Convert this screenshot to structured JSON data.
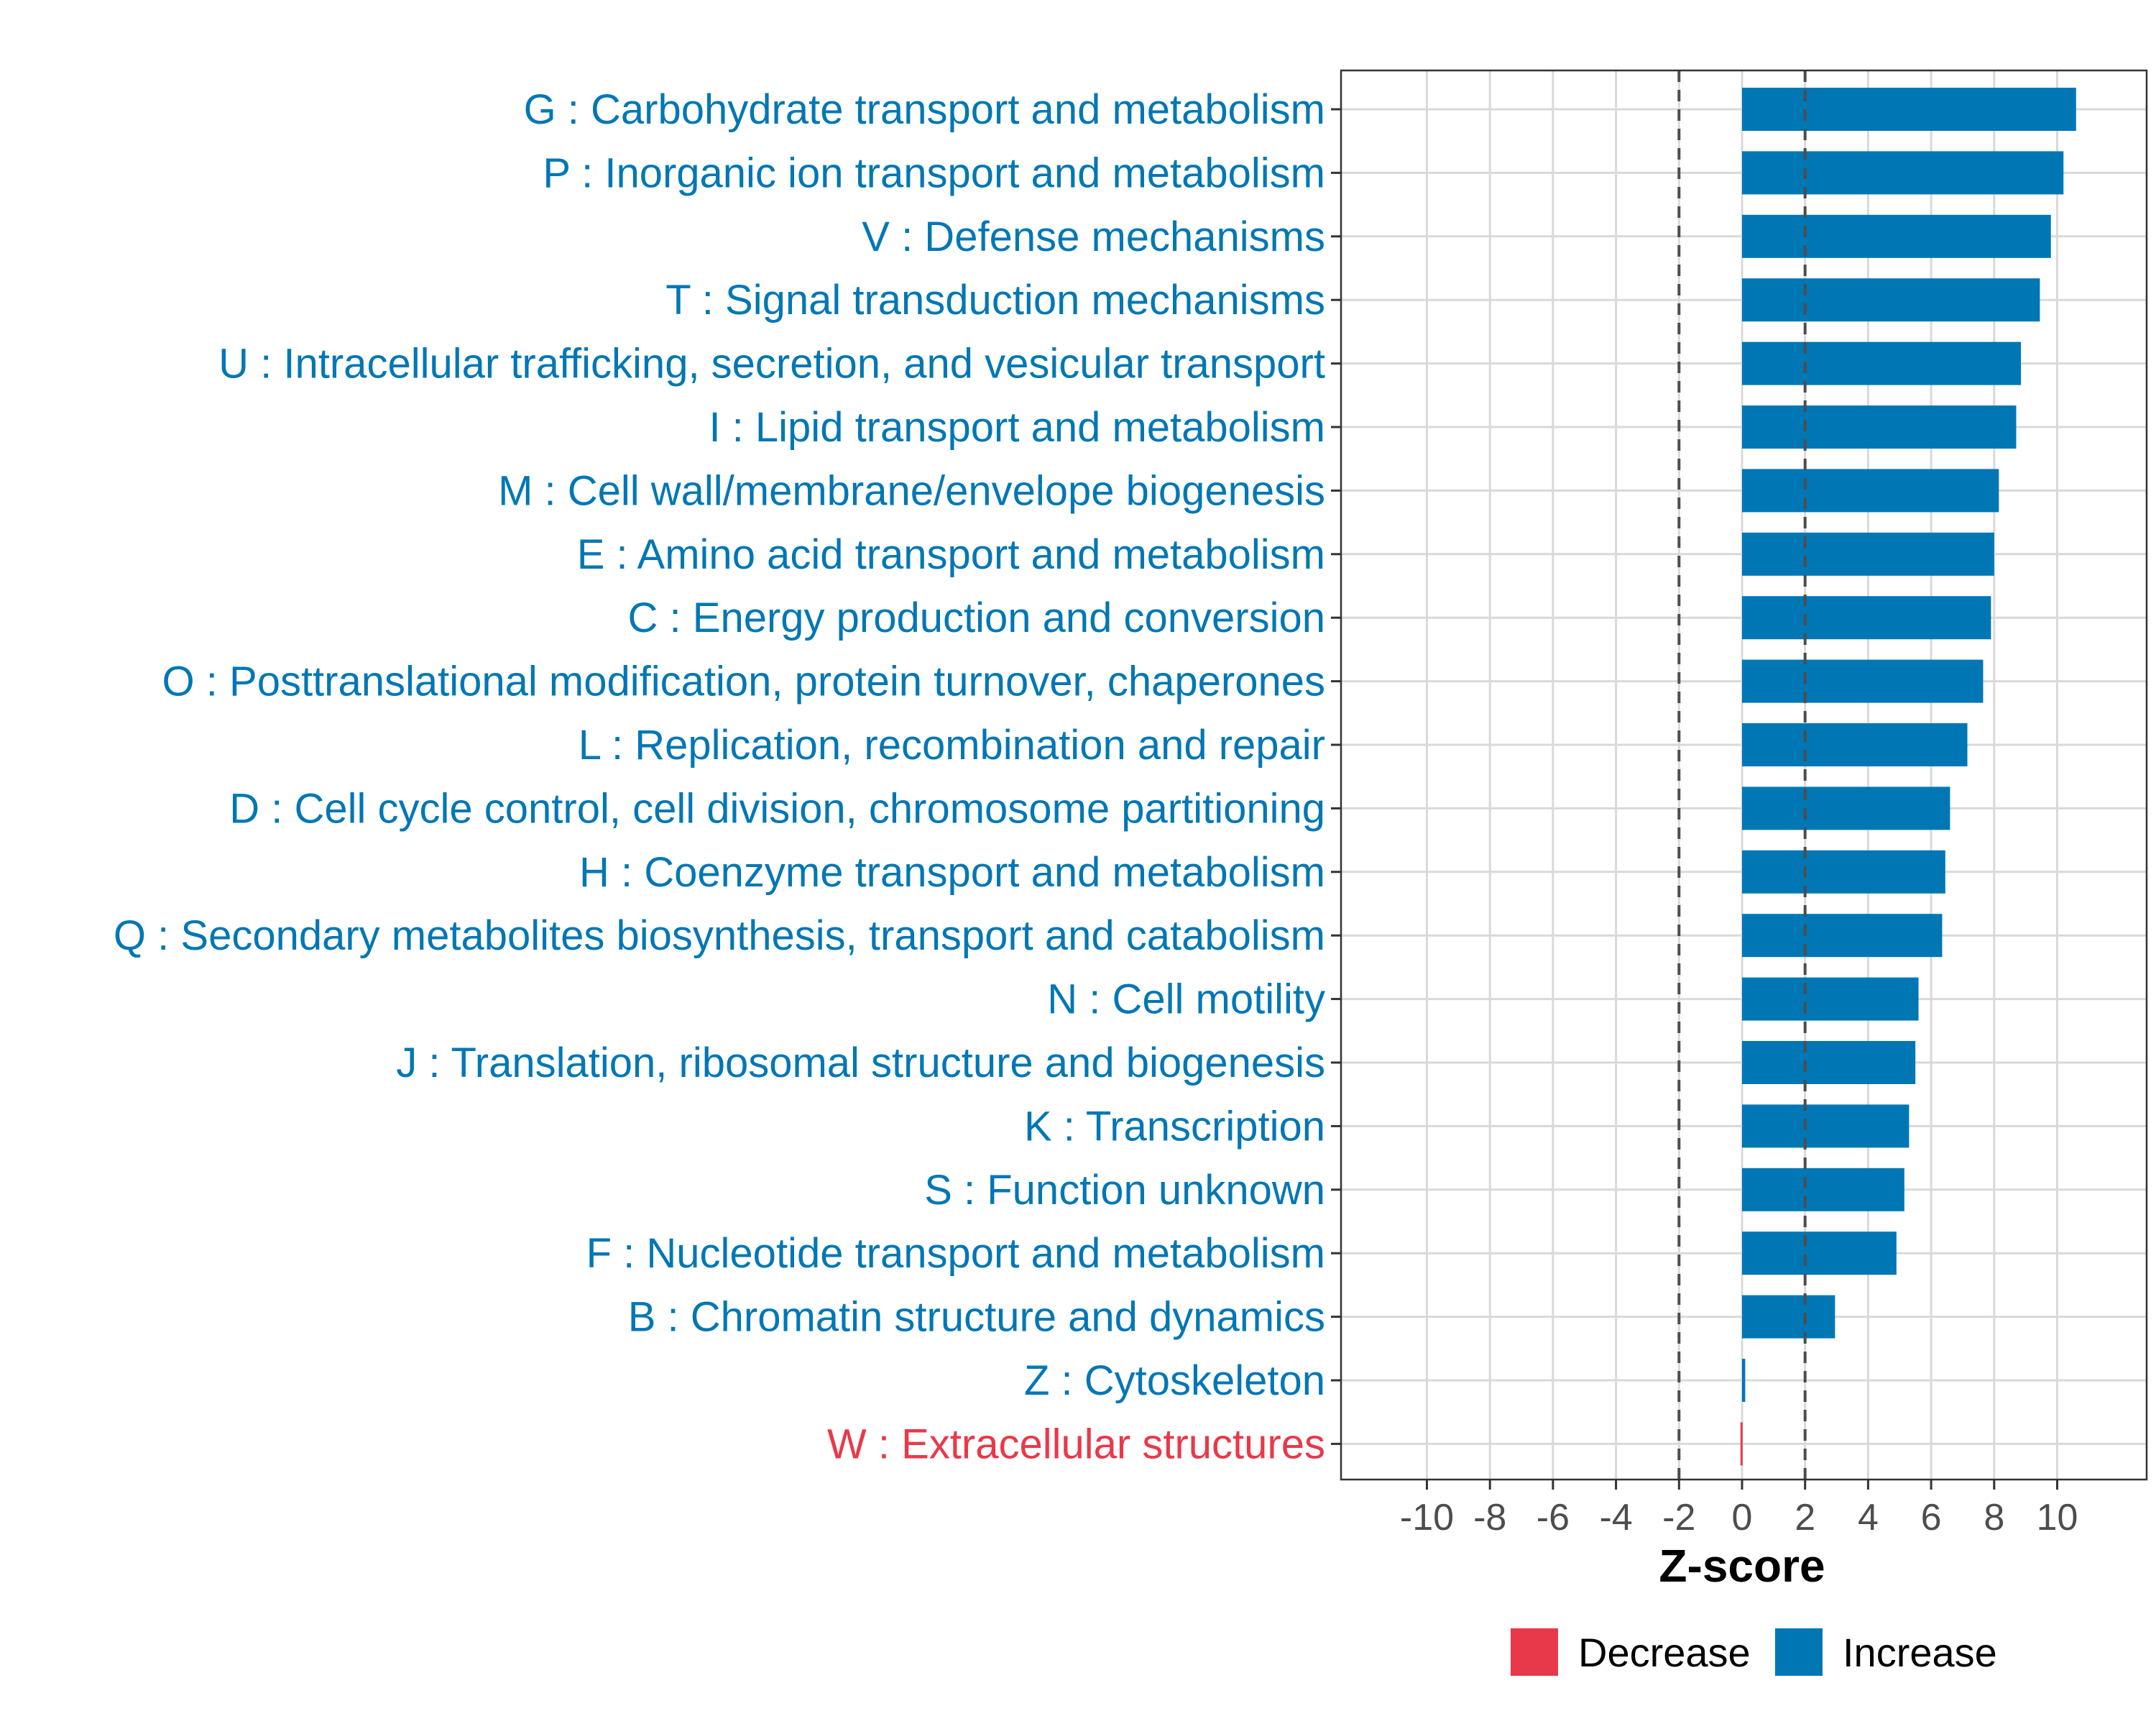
{
  "chart_data": {
    "type": "bar",
    "orientation": "horizontal",
    "xlabel": "Z-score",
    "ylabel": "",
    "xlim": [
      -12.6,
      12.6
    ],
    "xticks": [
      -10,
      -8,
      -6,
      -4,
      -2,
      0,
      2,
      4,
      6,
      8,
      10
    ],
    "xtick_labels": [
      "-10",
      "-8",
      "-6",
      "-4",
      "-2",
      "0",
      "2",
      "4",
      "6",
      "8",
      "10"
    ],
    "threshold_lines": [
      -2,
      2
    ],
    "grid": true,
    "colors": {
      "Increase": "#0077B5",
      "Decrease": "#E8394A",
      "grid": "#D9D9D9",
      "threshold": "#4D4D4D"
    },
    "legend": {
      "placement": "bottom",
      "entries": [
        {
          "label": "Decrease",
          "color": "#E8394A"
        },
        {
          "label": "Increase",
          "color": "#0077B5"
        }
      ]
    },
    "categories": [
      {
        "label": "G : Carbohydrate transport and metabolism",
        "value": 10.6,
        "direction": "Increase"
      },
      {
        "label": "P : Inorganic ion transport and metabolism",
        "value": 10.2,
        "direction": "Increase"
      },
      {
        "label": "V : Defense mechanisms",
        "value": 9.8,
        "direction": "Increase"
      },
      {
        "label": "T : Signal transduction mechanisms",
        "value": 9.45,
        "direction": "Increase"
      },
      {
        "label": "U : Intracellular trafficking, secretion, and vesicular transport",
        "value": 8.85,
        "direction": "Increase"
      },
      {
        "label": "I : Lipid transport and metabolism",
        "value": 8.7,
        "direction": "Increase"
      },
      {
        "label": "M : Cell wall/membrane/envelope biogenesis",
        "value": 8.15,
        "direction": "Increase"
      },
      {
        "label": "E : Amino acid transport and metabolism",
        "value": 8.0,
        "direction": "Increase"
      },
      {
        "label": "C : Energy production and conversion",
        "value": 7.9,
        "direction": "Increase"
      },
      {
        "label": "O : Posttranslational modification, protein turnover, chaperones",
        "value": 7.65,
        "direction": "Increase"
      },
      {
        "label": "L : Replication, recombination and repair",
        "value": 7.15,
        "direction": "Increase"
      },
      {
        "label": "D : Cell cycle control, cell division, chromosome partitioning",
        "value": 6.6,
        "direction": "Increase"
      },
      {
        "label": "H : Coenzyme transport and metabolism",
        "value": 6.45,
        "direction": "Increase"
      },
      {
        "label": "Q : Secondary metabolites biosynthesis, transport and catabolism",
        "value": 6.35,
        "direction": "Increase"
      },
      {
        "label": "N : Cell motility",
        "value": 5.6,
        "direction": "Increase"
      },
      {
        "label": "J : Translation, ribosomal structure and biogenesis",
        "value": 5.5,
        "direction": "Increase"
      },
      {
        "label": "K : Transcription",
        "value": 5.3,
        "direction": "Increase"
      },
      {
        "label": "S : Function unknown",
        "value": 5.15,
        "direction": "Increase"
      },
      {
        "label": "F : Nucleotide transport and metabolism",
        "value": 4.9,
        "direction": "Increase"
      },
      {
        "label": "B : Chromatin structure and dynamics",
        "value": 2.95,
        "direction": "Increase"
      },
      {
        "label": "Z : Cytoskeleton",
        "value": 0.1,
        "direction": "Increase"
      },
      {
        "label": "W : Extracellular structures",
        "value": -0.05,
        "direction": "Decrease"
      }
    ]
  }
}
